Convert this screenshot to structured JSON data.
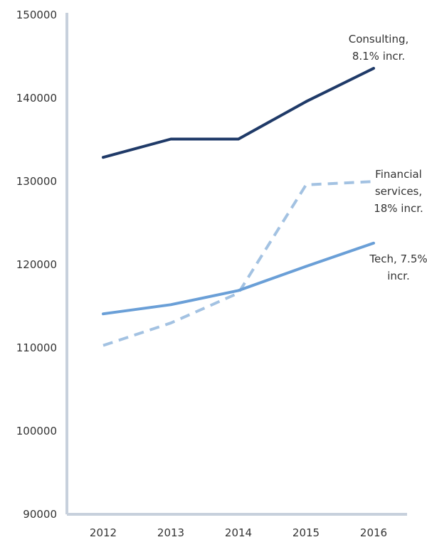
{
  "chart_data": {
    "type": "line",
    "title": "",
    "xlabel": "",
    "ylabel": "",
    "x": [
      "2012",
      "2013",
      "2014",
      "2015",
      "2016"
    ],
    "ylim": [
      90000,
      150000
    ],
    "yticks": [
      "150000",
      "140000",
      "130000",
      "120000",
      "110000",
      "100000",
      "90000"
    ],
    "grid": false,
    "legend": "none",
    "series": [
      {
        "values": [
          132800,
          135000,
          135000,
          139500,
          143500
        ],
        "color": "#1f3a68",
        "style": "solid",
        "annotation": [
          "Consulting,",
          "8.1% incr."
        ]
      },
      {
        "values": [
          110200,
          112900,
          116500,
          129500,
          129900
        ],
        "color": "#a3c2e2",
        "style": "dashed",
        "annotation": [
          "Financial",
          "services,",
          "18% incr."
        ]
      },
      {
        "values": [
          114000,
          115100,
          116800,
          119700,
          122500
        ],
        "color": "#6a9fd7",
        "style": "solid",
        "annotation": [
          "Tech, 7.5%",
          "incr."
        ]
      }
    ]
  }
}
